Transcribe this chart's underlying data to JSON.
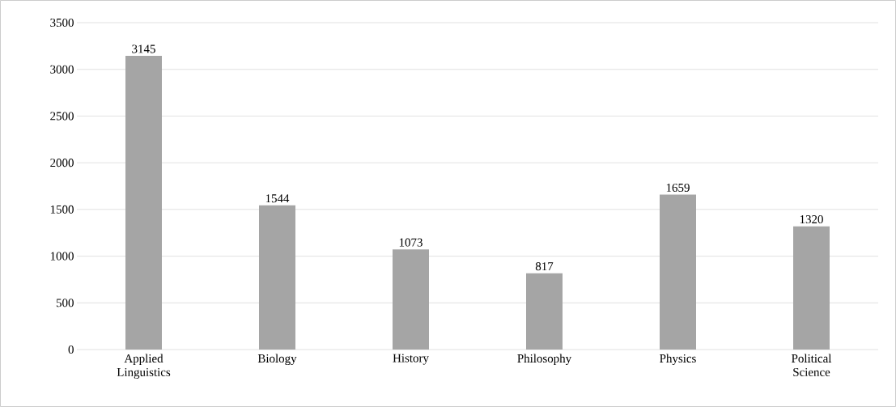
{
  "chart_data": {
    "type": "bar",
    "categories": [
      "Applied Linguistics",
      "Biology",
      "History",
      "Philosophy",
      "Physics",
      "Political Science"
    ],
    "values": [
      3145,
      1544,
      1073,
      817,
      1659,
      1320
    ],
    "color": "#a5a5a5",
    "ylim": [
      0,
      3500
    ],
    "yticks": [
      0,
      500,
      1000,
      1500,
      2000,
      2500,
      3000,
      3500
    ],
    "grid": "y",
    "data_labels": true
  }
}
